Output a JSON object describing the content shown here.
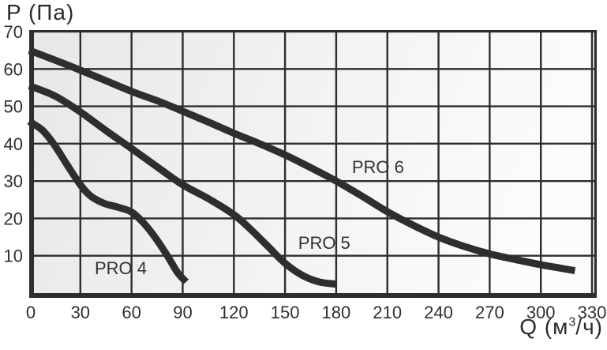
{
  "page": {
    "background": "#ffffff"
  },
  "axes": {
    "y_title": "P (Па)",
    "x_title_prefix": "Q (м",
    "x_title_sup": "3",
    "x_title_suffix": "/ч)"
  },
  "colors": {
    "line": "#2d2d2d",
    "curve": "#2e2e2e",
    "text": "#2f2f2f",
    "plot_bg_start": "#e7e7e7",
    "plot_bg_mid": "#f1f1f1",
    "plot_bg_end": "#fcfcfc"
  },
  "chart_data": {
    "type": "line",
    "title": "",
    "xlabel": "Q (м³/ч)",
    "ylabel": "P (Па)",
    "xlim": [
      0,
      333
    ],
    "ylim": [
      0,
      70
    ],
    "x_ticks": [
      0,
      30,
      60,
      90,
      120,
      150,
      180,
      210,
      240,
      270,
      300,
      330
    ],
    "y_ticks": [
      10,
      20,
      30,
      40,
      50,
      60,
      70
    ],
    "grid": true,
    "legend_position": "inline-labels",
    "series": [
      {
        "name": "PRO 4",
        "label": {
          "text": "PRO 4",
          "at_q": 53.7,
          "at_p": 6.8
        },
        "points": [
          [
            0,
            46
          ],
          [
            8,
            43.5
          ],
          [
            15,
            39.5
          ],
          [
            22,
            34.5
          ],
          [
            30,
            29
          ],
          [
            36,
            26
          ],
          [
            44,
            24
          ],
          [
            52,
            23
          ],
          [
            60,
            21.7
          ],
          [
            67,
            18.8
          ],
          [
            74,
            14.8
          ],
          [
            81,
            10
          ],
          [
            87,
            5.5
          ],
          [
            92,
            3
          ]
        ]
      },
      {
        "name": "PRO 5",
        "label": {
          "text": "PRO 5",
          "at_q": 173,
          "at_p": 13.5
        },
        "points": [
          [
            0,
            55.5
          ],
          [
            15,
            52.8
          ],
          [
            30,
            48.5
          ],
          [
            45,
            43.5
          ],
          [
            60,
            38.7
          ],
          [
            75,
            33.8
          ],
          [
            90,
            29
          ],
          [
            105,
            25.3
          ],
          [
            120,
            21
          ],
          [
            130,
            17
          ],
          [
            140,
            12.5
          ],
          [
            150,
            8
          ],
          [
            160,
            4.8
          ],
          [
            170,
            3
          ],
          [
            180,
            2.4
          ]
        ]
      },
      {
        "name": "PRO 6",
        "label": {
          "text": "PRO 6",
          "at_q": 204.5,
          "at_p": 33.8
        },
        "points": [
          [
            0,
            65
          ],
          [
            20,
            61.5
          ],
          [
            40,
            57.8
          ],
          [
            60,
            54
          ],
          [
            75,
            51.5
          ],
          [
            90,
            48.7
          ],
          [
            105,
            45.8
          ],
          [
            120,
            42.8
          ],
          [
            135,
            40
          ],
          [
            150,
            37
          ],
          [
            165,
            33.6
          ],
          [
            180,
            30
          ],
          [
            195,
            26
          ],
          [
            210,
            21.8
          ],
          [
            225,
            18.2
          ],
          [
            240,
            15
          ],
          [
            255,
            12.5
          ],
          [
            270,
            10.5
          ],
          [
            285,
            9
          ],
          [
            300,
            7.6
          ],
          [
            310,
            6.8
          ],
          [
            320,
            6
          ]
        ]
      }
    ]
  }
}
